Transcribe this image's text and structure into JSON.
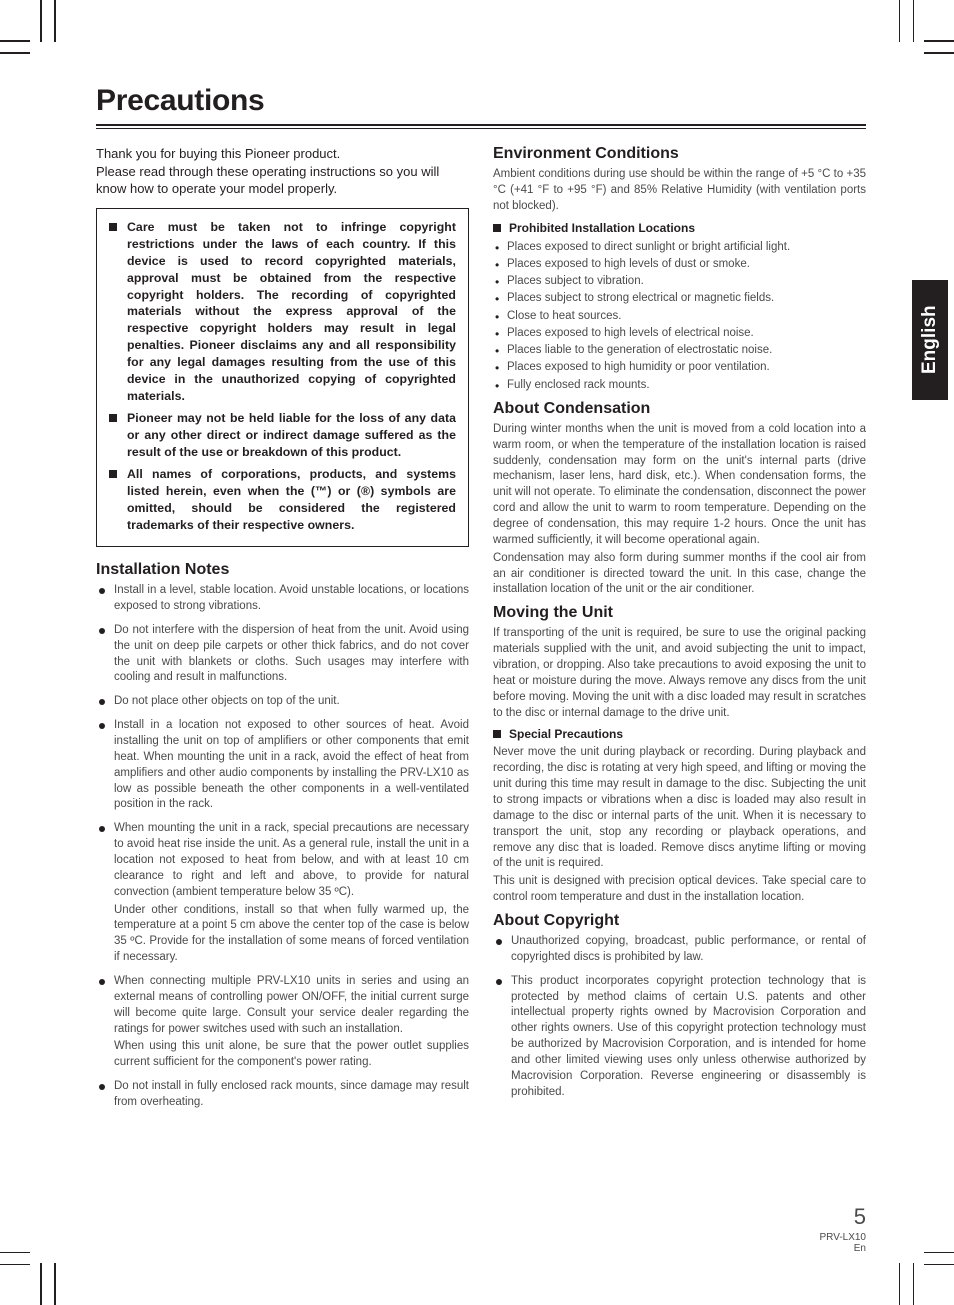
{
  "title": "Precautions",
  "language_tab": "English",
  "intro_line1": "Thank you for buying this Pioneer product.",
  "intro_line2": "Please read through these operating instructions so you will know how to operate your model properly.",
  "warning_box": [
    "Care must be taken not to infringe copyright restrictions under the laws of each country. If this device is used to record copyrighted materials, approval must be obtained from the respective copyright holders. The recording of copyrighted materials without the express approval of the respective copyright holders may result in legal penalties. Pioneer disclaims any and all responsibility for any legal damages resulting from the use of this device in the unauthorized copying of copyrighted materials.",
    "Pioneer may not be held liable for the loss of any data or any other direct or indirect damage suffered as the result of the use or breakdown of this product.",
    "All names of corporations, products, and systems listed herein, even when the (™) or (®) symbols are omitted, should be considered the registered trademarks of their respective owners."
  ],
  "installation": {
    "heading": "Installation Notes",
    "items": [
      "Install in a level, stable location. Avoid unstable locations, or locations exposed to strong vibrations.",
      "Do not interfere with the dispersion of heat from the unit. Avoid using the unit on deep pile carpets or other thick fabrics, and do not cover the unit with blankets or cloths. Such usages may interfere with cooling and result in malfunctions.",
      "Do not place other objects on top of the unit.",
      "Install in a location not exposed to other sources of heat. Avoid installing the unit on top of amplifiers or other components that emit heat. When mounting the unit in a rack, avoid the effect of heat from amplifiers and other audio components by installing the PRV-LX10 as low as possible beneath the other components in a well-ventilated position in the rack.",
      "When mounting the unit in a rack, special precautions are necessary to avoid heat rise inside the unit. As a general rule, install the unit in a location not exposed to heat from below, and with at least 10 cm clearance to right and left and above, to provide for natural convection (ambient temperature below 35 ºC).\nUnder other conditions, install so that when fully warmed up, the temperature at a point 5 cm above the center top of the case is below 35 ºC. Provide for the installation of some means of forced ventilation if necessary.",
      "When connecting multiple PRV-LX10 units in series and using an external means of controlling power ON/OFF, the initial current surge will become quite large. Consult your service dealer regarding the ratings for power switches used with such an installation.\nWhen using this unit alone, be sure that the power outlet supplies current sufficient for the component's power rating.",
      "Do not install in fully enclosed rack mounts, since damage may result from overheating."
    ]
  },
  "environment": {
    "heading": "Environment Conditions",
    "intro": "Ambient conditions during use should be within the range of +5 °C to +35 °C (+41 °F to +95 °F) and 85% Relative Humidity (with ventilation ports not blocked).",
    "sub_heading": "Prohibited Installation Locations",
    "items": [
      "Places exposed to direct sunlight or bright artificial light.",
      "Places exposed to high levels of dust or smoke.",
      "Places subject to vibration.",
      "Places subject to strong electrical or magnetic fields.",
      "Close to heat sources.",
      "Places exposed to high levels of electrical noise.",
      "Places liable to the generation of electrostatic noise.",
      "Places exposed to high humidity or poor ventilation.",
      "Fully enclosed rack mounts."
    ]
  },
  "condensation": {
    "heading": "About Condensation",
    "p1": "During winter months when the unit is moved from a cold location into a warm room, or when the temperature of the installation location is raised suddenly, condensation may form on the unit's internal parts (drive mechanism, laser lens, hard disk, etc.). When condensation forms, the unit will not operate. To eliminate the condensation, disconnect the power cord and allow the unit to warm to room temperature. Depending on the degree of condensation, this may require 1-2 hours. Once the unit has warmed sufficiently, it will become operational again.",
    "p2": "Condensation may also form during summer months if the cool air from an air conditioner is directed toward the unit. In this case, change the installation location of the unit or the air conditioner."
  },
  "moving": {
    "heading": "Moving the Unit",
    "p1": "If transporting of the unit is required, be sure to use the original packing materials supplied with the unit, and avoid subjecting the unit to impact, vibration, or dropping. Also take precautions to avoid exposing the unit to heat or moisture during the move. Always remove any discs from the unit before moving. Moving the unit with a disc loaded may result in scratches to the disc or internal damage to the drive unit.",
    "sub_heading": "Special Precautions",
    "p2": "Never move the unit during playback or recording. During playback and recording, the disc is rotating at very high speed, and lifting or moving the unit during this time may result in damage to the disc. Subjecting the unit to strong impacts or vibrations when a disc is loaded may also result in damage to the disc or internal parts of the unit. When it is necessary to transport the unit, stop any recording or playback operations, and remove any disc that is loaded. Remove discs anytime lifting or moving of the unit is required.",
    "p3": "This unit is designed with precision optical devices. Take special care to control room temperature and dust in the installation location."
  },
  "copyright": {
    "heading": "About Copyright",
    "items": [
      "Unauthorized copying, broadcast, public performance, or rental of copyrighted discs is prohibited by law.",
      "This product incorporates copyright protection technology that is protected by method claims of certain U.S. patents and other intellectual property rights owned by Macrovision Corporation and other rights owners. Use of this copyright protection technology must be authorized by Macrovision Corporation, and is intended for home and other limited viewing uses only unless otherwise authorized by Macrovision Corporation. Reverse engineering or disassembly is prohibited."
    ]
  },
  "footer": {
    "page_no": "5",
    "model": "PRV-LX10",
    "lang": "En"
  },
  "colors": {
    "text": "#231f20",
    "body_text": "#4a4a4a",
    "background": "#ffffff"
  }
}
